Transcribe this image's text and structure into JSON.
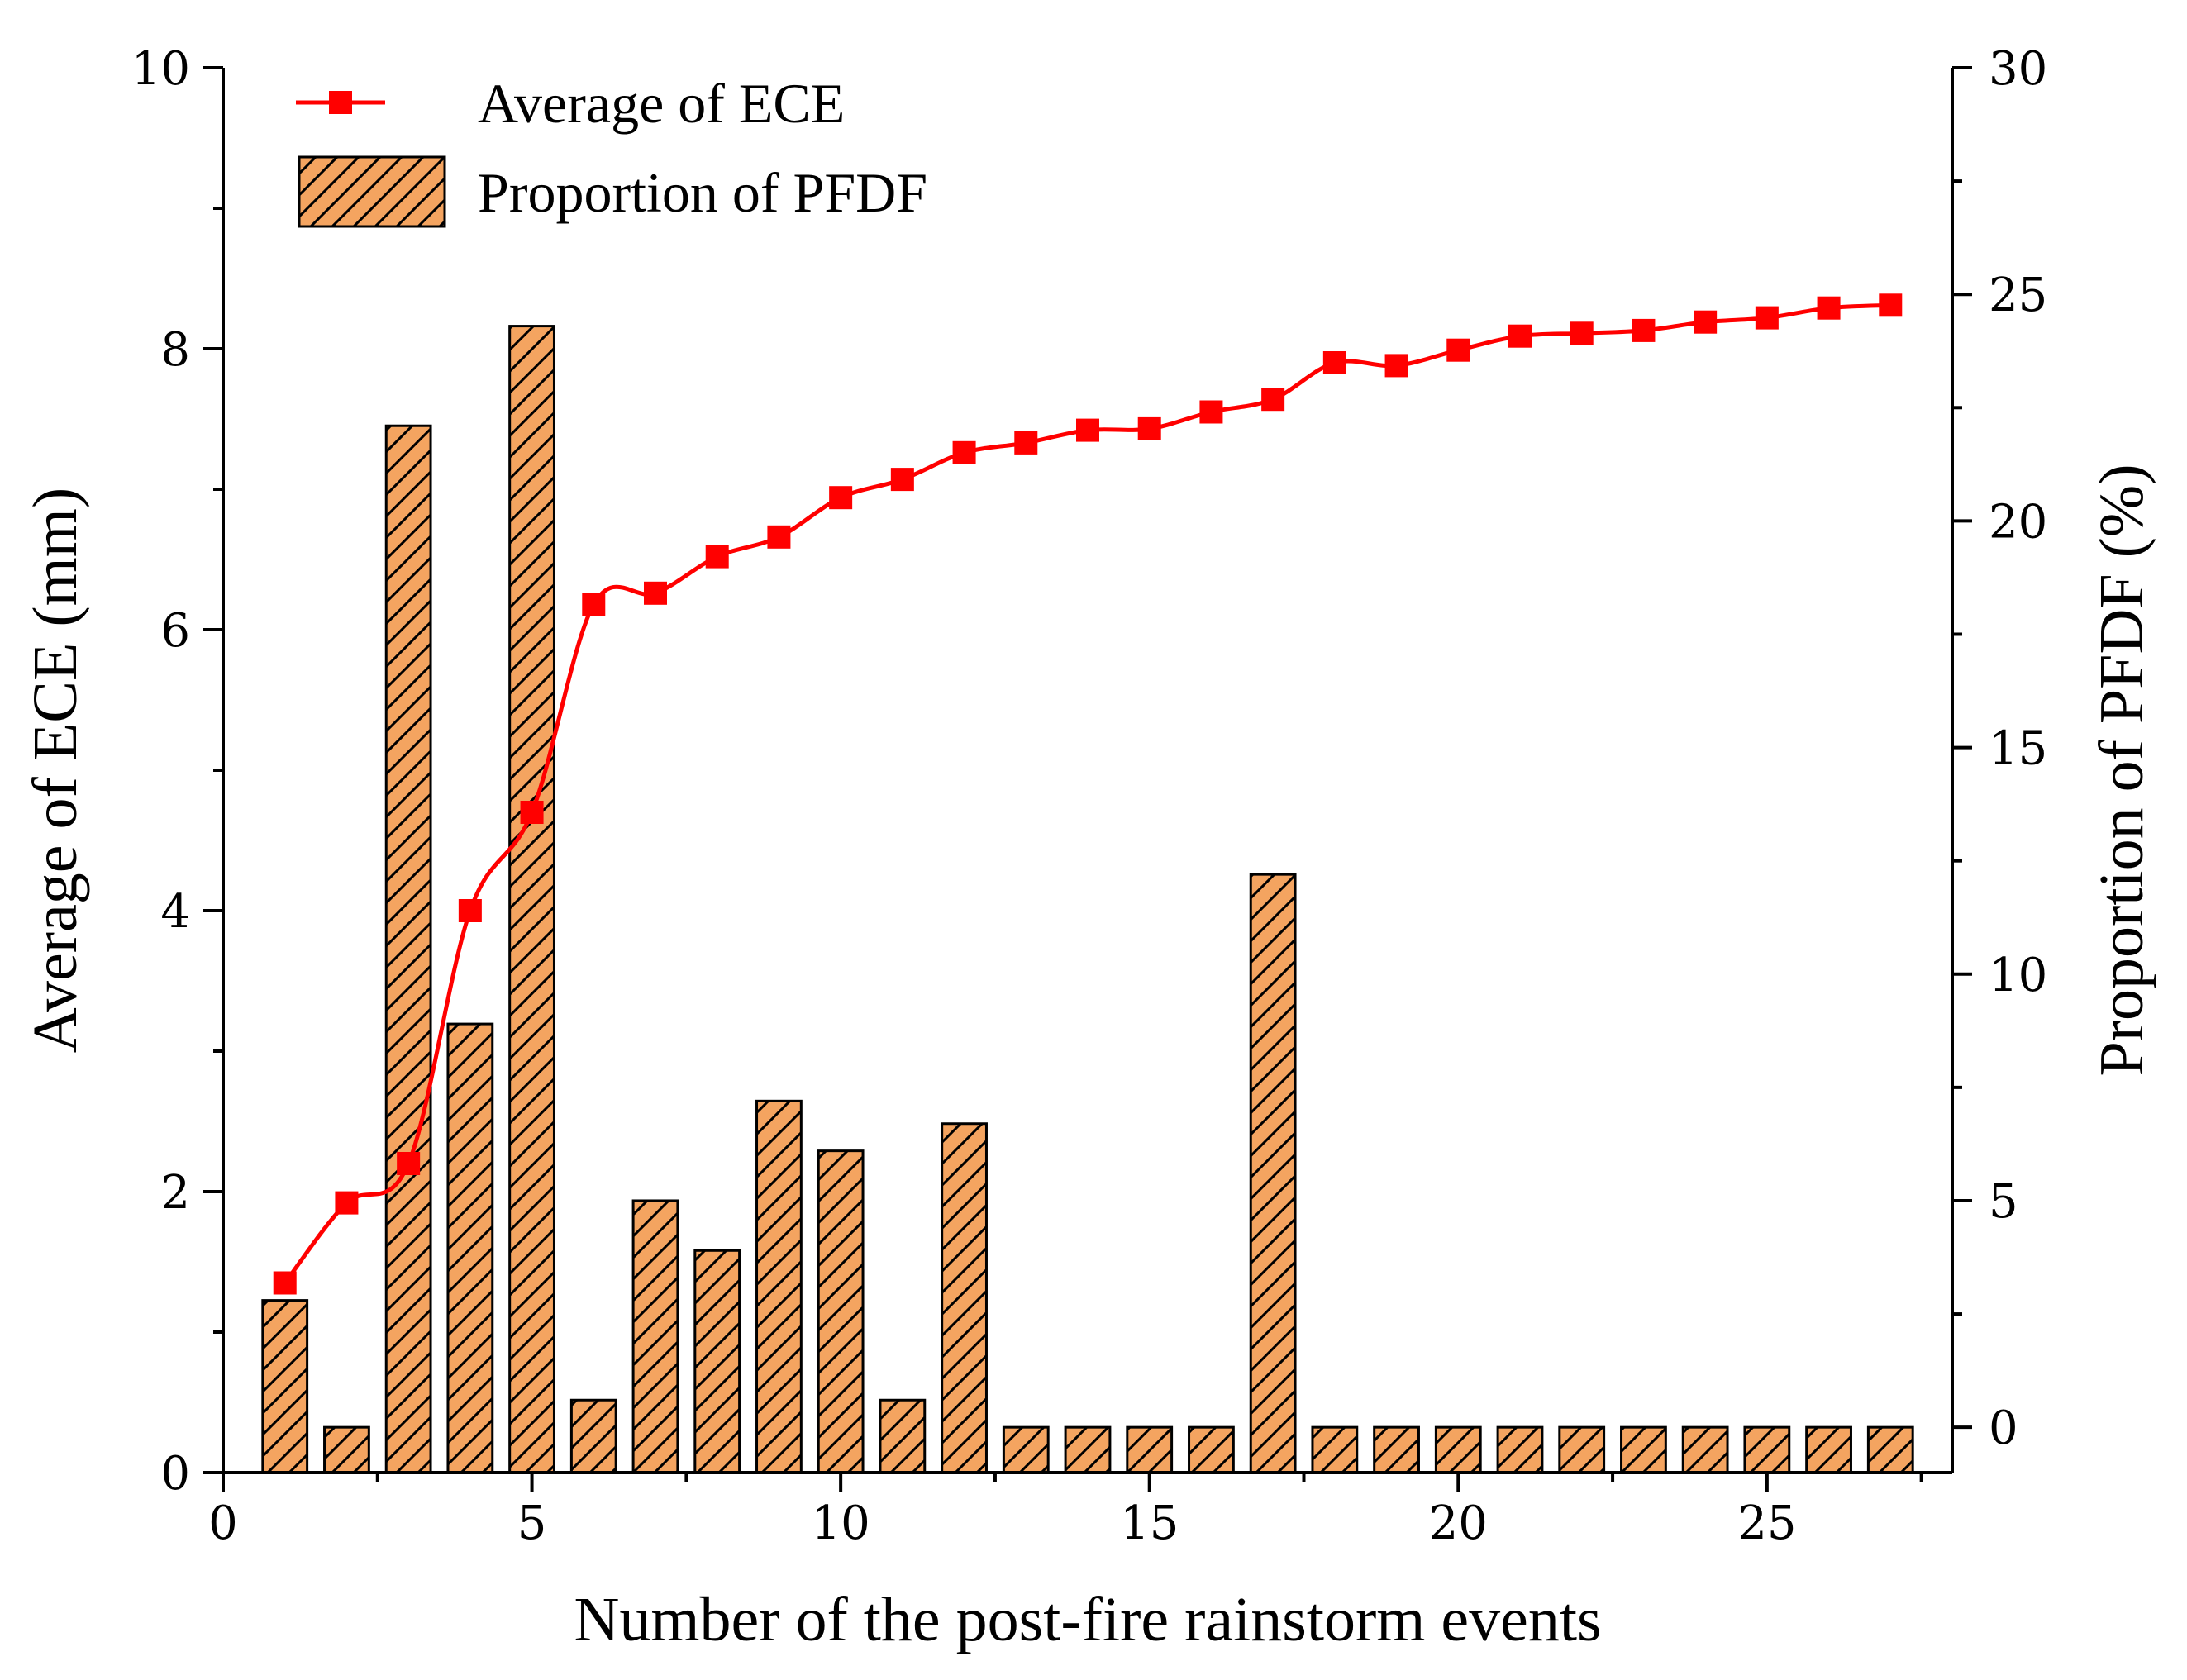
{
  "chart_data": {
    "type": "bar",
    "title": "",
    "xlabel": "Number of the post-fire rainstorm events",
    "ylabel": "Average of ECE (mm)",
    "y2label": "Proportion of PFDF (%)",
    "xlim": [
      0,
      28
    ],
    "ylim": [
      0,
      10
    ],
    "y2lim": [
      -1,
      30
    ],
    "x_ticks": [
      0,
      5,
      10,
      15,
      20,
      25
    ],
    "y_ticks": [
      0,
      2,
      4,
      6,
      8,
      10
    ],
    "y2_ticks": [
      0,
      5,
      10,
      15,
      20,
      25,
      30
    ],
    "legend_position": "top-left",
    "x": [
      1,
      2,
      3,
      4,
      5,
      6,
      7,
      8,
      9,
      10,
      11,
      12,
      13,
      14,
      15,
      16,
      17,
      18,
      19,
      20,
      21,
      22,
      23,
      24,
      25,
      26,
      27
    ],
    "series": [
      {
        "name": "Proportion of PFDF",
        "type": "bar",
        "axis": "right",
        "color": "#F4A460",
        "values": [
          2.8,
          0,
          22.1,
          8.9,
          24.3,
          0.6,
          5.0,
          3.9,
          7.2,
          6.1,
          0.6,
          6.7,
          0,
          0,
          0,
          0,
          12.2,
          0,
          0,
          0,
          0,
          0,
          0,
          0,
          0,
          0,
          0
        ]
      },
      {
        "name": "Average of ECE",
        "type": "line",
        "axis": "left",
        "color": "#FF0000",
        "values": [
          1.35,
          1.92,
          2.2,
          4.0,
          4.7,
          6.18,
          6.26,
          6.52,
          6.66,
          6.94,
          7.07,
          7.26,
          7.33,
          7.42,
          7.43,
          7.55,
          7.64,
          7.9,
          7.88,
          7.99,
          8.09,
          8.11,
          8.13,
          8.19,
          8.22,
          8.29,
          8.31
        ]
      }
    ]
  }
}
